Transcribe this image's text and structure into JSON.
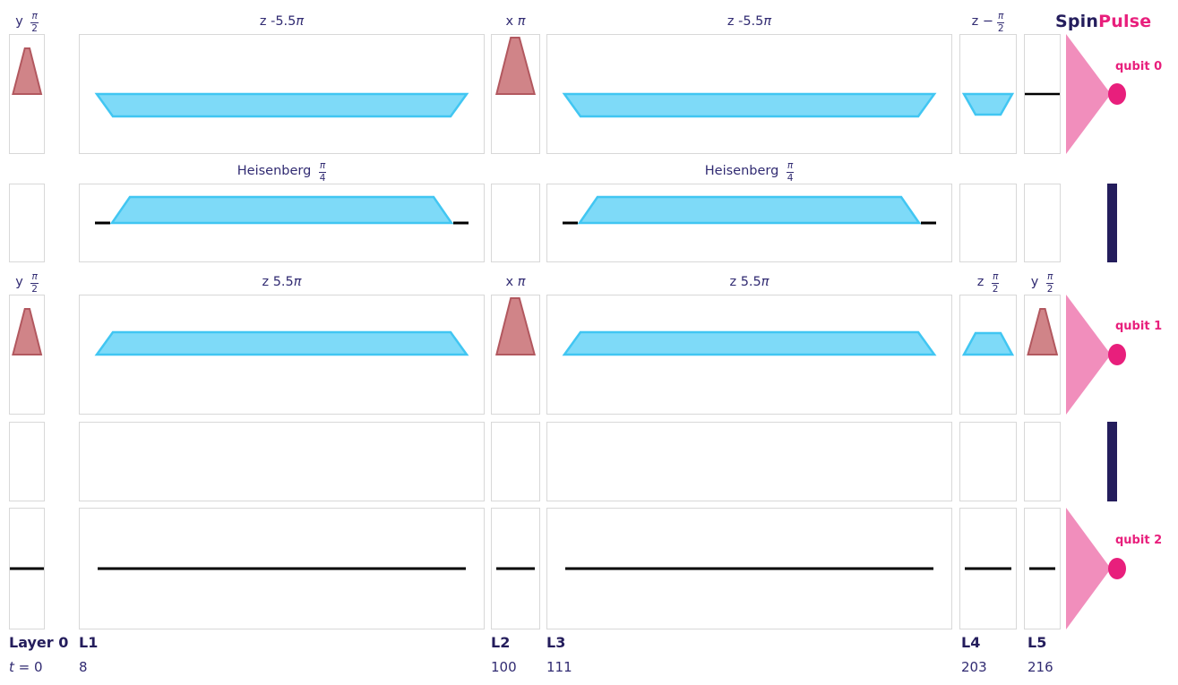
{
  "brand": {
    "spin": "Spin",
    "pulse": "Pulse"
  },
  "qubits": [
    {
      "label": "qubit 0"
    },
    {
      "label": "qubit 1"
    },
    {
      "label": "qubit 2"
    }
  ],
  "titles": [
    {
      "row": 0,
      "col": 0,
      "pre": "y ",
      "frac": [
        "π",
        "2"
      ]
    },
    {
      "row": 0,
      "col": 1,
      "pre": "z -5.5",
      "pi": true
    },
    {
      "row": 0,
      "col": 2,
      "pre": "x ",
      "pi": true
    },
    {
      "row": 0,
      "col": 3,
      "pre": "z -5.5",
      "pi": true
    },
    {
      "row": 0,
      "col": 4,
      "pre": "z −",
      "frac": [
        "π",
        "2"
      ]
    },
    {
      "row": 1,
      "col": 1,
      "pre": "Heisenberg ",
      "frac": [
        "π",
        "4"
      ]
    },
    {
      "row": 1,
      "col": 3,
      "pre": "Heisenberg ",
      "frac": [
        "π",
        "4"
      ]
    },
    {
      "row": 2,
      "col": 0,
      "pre": "y ",
      "frac": [
        "π",
        "2"
      ]
    },
    {
      "row": 2,
      "col": 1,
      "pre": "z 5.5",
      "pi": true
    },
    {
      "row": 2,
      "col": 2,
      "pre": "x ",
      "pi": true
    },
    {
      "row": 2,
      "col": 3,
      "pre": "z 5.5",
      "pi": true
    },
    {
      "row": 2,
      "col": 4,
      "pre": "z ",
      "frac": [
        "π",
        "2"
      ]
    },
    {
      "row": 2,
      "col": 5,
      "pre": "y ",
      "frac": [
        "π",
        "2"
      ]
    }
  ],
  "grid": {
    "rows": [
      {
        "kind": "qubit"
      },
      {
        "kind": "coupler"
      },
      {
        "kind": "qubit"
      },
      {
        "kind": "coupler"
      },
      {
        "kind": "qubit"
      }
    ],
    "cells": [
      {
        "row": 0,
        "col": 0,
        "pulse": "red_half"
      },
      {
        "row": 0,
        "col": 1,
        "pulse": "cyan_neg"
      },
      {
        "row": 0,
        "col": 2,
        "pulse": "red_full"
      },
      {
        "row": 0,
        "col": 3,
        "pulse": "cyan_neg"
      },
      {
        "row": 0,
        "col": 4,
        "pulse": "cyan_neg_small"
      },
      {
        "row": 0,
        "col": 5,
        "pulse": "baseline"
      },
      {
        "row": 1,
        "col": 0,
        "pulse": "none"
      },
      {
        "row": 1,
        "col": 1,
        "pulse": "heisenberg"
      },
      {
        "row": 1,
        "col": 2,
        "pulse": "none"
      },
      {
        "row": 1,
        "col": 3,
        "pulse": "heisenberg"
      },
      {
        "row": 1,
        "col": 4,
        "pulse": "none"
      },
      {
        "row": 1,
        "col": 5,
        "pulse": "none"
      },
      {
        "row": 2,
        "col": 0,
        "pulse": "red_half"
      },
      {
        "row": 2,
        "col": 1,
        "pulse": "cyan_pos"
      },
      {
        "row": 2,
        "col": 2,
        "pulse": "red_full"
      },
      {
        "row": 2,
        "col": 3,
        "pulse": "cyan_pos"
      },
      {
        "row": 2,
        "col": 4,
        "pulse": "cyan_pos_small"
      },
      {
        "row": 2,
        "col": 5,
        "pulse": "red_half"
      },
      {
        "row": 3,
        "col": 0,
        "pulse": "none"
      },
      {
        "row": 3,
        "col": 1,
        "pulse": "none"
      },
      {
        "row": 3,
        "col": 2,
        "pulse": "none"
      },
      {
        "row": 3,
        "col": 3,
        "pulse": "none"
      },
      {
        "row": 3,
        "col": 4,
        "pulse": "none"
      },
      {
        "row": 3,
        "col": 5,
        "pulse": "none"
      },
      {
        "row": 4,
        "col": 0,
        "pulse": "flat"
      },
      {
        "row": 4,
        "col": 1,
        "pulse": "flat"
      },
      {
        "row": 4,
        "col": 2,
        "pulse": "flat"
      },
      {
        "row": 4,
        "col": 3,
        "pulse": "flat"
      },
      {
        "row": 4,
        "col": 4,
        "pulse": "flat"
      },
      {
        "row": 4,
        "col": 5,
        "pulse": "flat"
      }
    ]
  },
  "footer": {
    "layer_label": "Layer 0",
    "time_var": "t",
    "time_rest": " = 0",
    "layers": [
      {
        "name": "L1",
        "t": "8"
      },
      {
        "name": "L2",
        "t": "100"
      },
      {
        "name": "L3",
        "t": "111"
      },
      {
        "name": "L4",
        "t": "203"
      },
      {
        "name": "L5",
        "t": "216"
      }
    ]
  },
  "colors": {
    "accent_pink": "#e81f7c",
    "light_pink": "#f18ebc",
    "navy": "#241d5c",
    "label_indigo": "#312b72",
    "pulse_red_fill": "#d08488",
    "pulse_red_stroke": "#b2585f",
    "pulse_cyan_fill": "#7edaf8",
    "pulse_cyan_stroke": "#41c6f2"
  }
}
